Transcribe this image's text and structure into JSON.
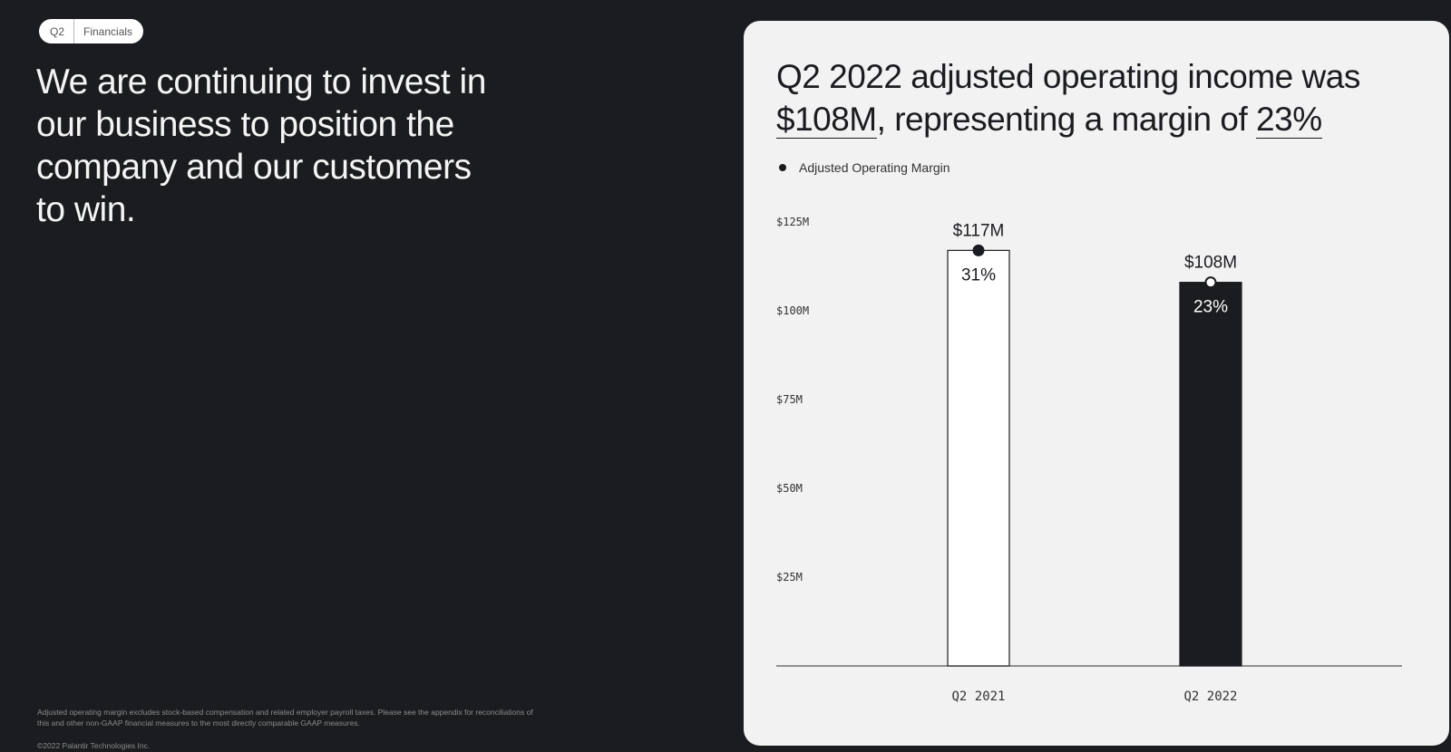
{
  "badge": {
    "quarter": "Q2",
    "section": "Financials"
  },
  "headline": "We are continuing to invest in our business to position the company and our customers to win.",
  "footnote": "Adjusted operating margin excludes stock-based compensation and related employer payroll taxes. Please see the appendix for reconciliations of this and other non-GAAP financial measures to the most directly comparable GAAP measures.",
  "copyright": "©2022 Palantir Technologies Inc.",
  "card": {
    "title_pre": "Q2 2022 adjusted operating income was ",
    "title_value": "$108M",
    "title_mid": ", representing a margin of ",
    "title_margin": "23%"
  },
  "colors": {
    "bar_fill_2022": "#1b1c20",
    "bar_fill_2021": "#ffffff",
    "card_bg": "#f2f2f2",
    "page_bg": "#1b1c20"
  },
  "chart_data": {
    "type": "bar",
    "categories": [
      "Q2 2021",
      "Q2 2022"
    ],
    "values": [
      117,
      108
    ],
    "value_labels": [
      "$117M",
      "$108M"
    ],
    "margins": [
      "31%",
      "23%"
    ],
    "legend": [
      "Adjusted Operating Margin"
    ],
    "legend_placement": "top-left",
    "y_ticks": [
      25,
      50,
      75,
      100,
      125
    ],
    "y_tick_labels": [
      "$25M",
      "$50M",
      "$75M",
      "$100M",
      "$125M"
    ],
    "ylim": [
      0,
      125
    ],
    "grid": false
  }
}
